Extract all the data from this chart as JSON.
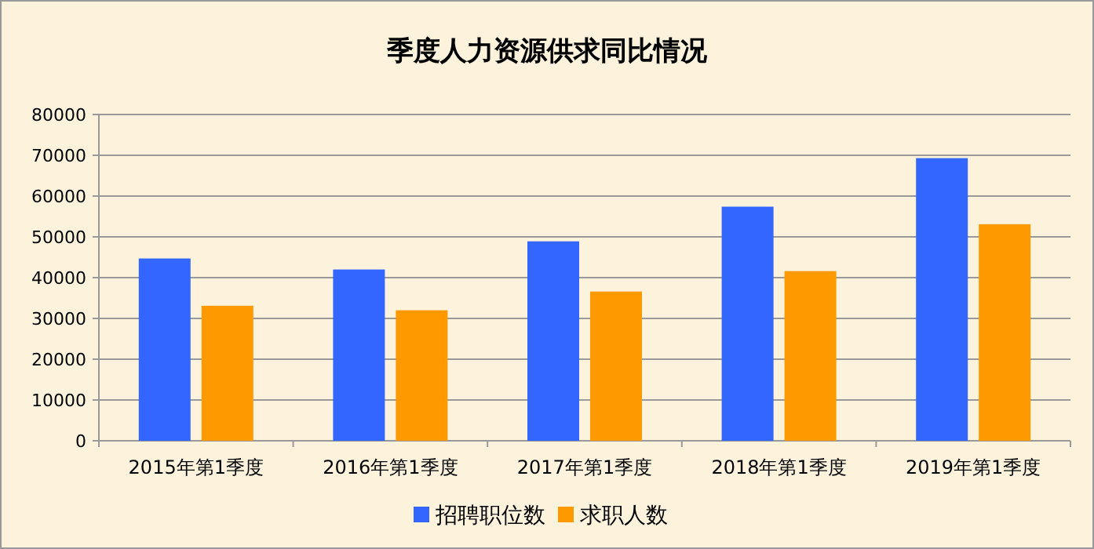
{
  "chart_data": {
    "type": "bar",
    "title": "季度人力资源供求同比情况",
    "categories": [
      "2015年第1季度",
      "2016年第1季度",
      "2017年第1季度",
      "2018年第1季度",
      "2019年第1季度"
    ],
    "series": [
      {
        "name": "招聘职位数",
        "color": "#3366ff",
        "values": [
          44700,
          42000,
          48900,
          57400,
          69300
        ]
      },
      {
        "name": "求职人数",
        "color": "#ff9900",
        "values": [
          33100,
          32000,
          36600,
          41600,
          53100
        ]
      }
    ],
    "ylim": [
      0,
      80000
    ],
    "yticks": [
      0,
      10000,
      20000,
      30000,
      40000,
      50000,
      60000,
      70000,
      80000
    ],
    "grid": "y",
    "legend": "bottom"
  }
}
